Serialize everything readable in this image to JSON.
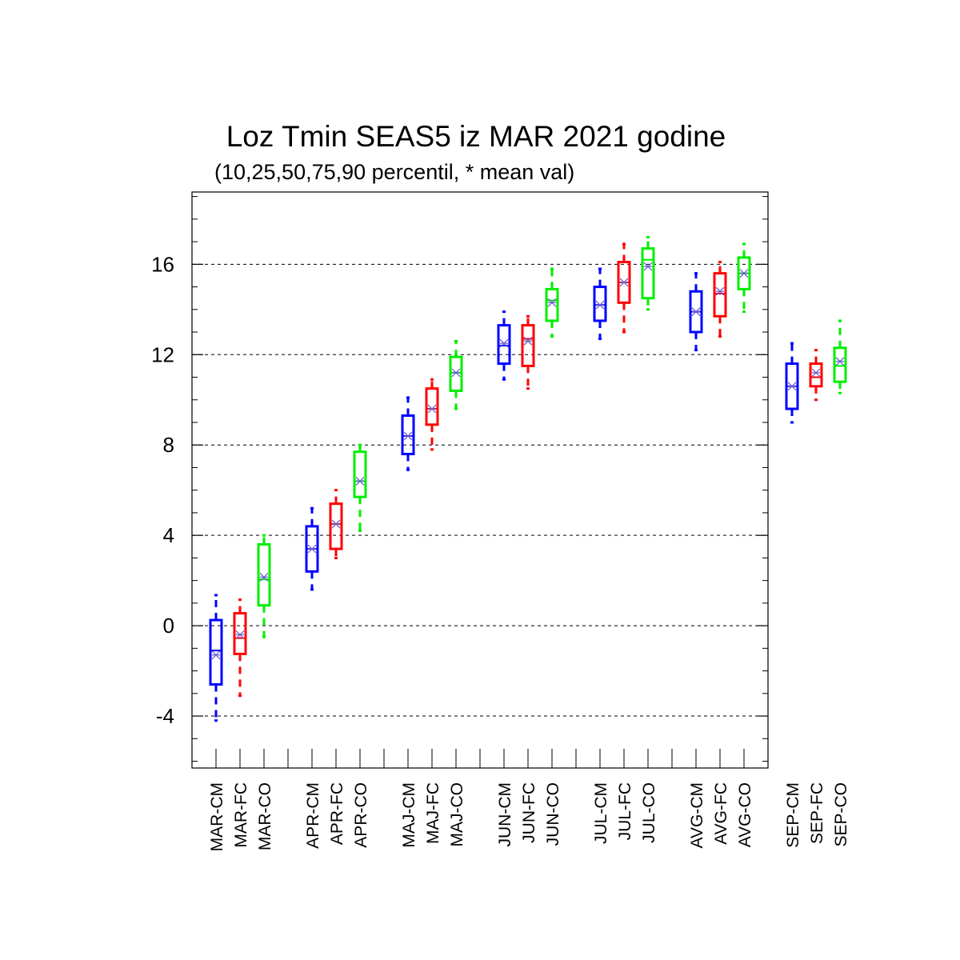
{
  "chart_data": {
    "type": "box",
    "title": "Loz Tmin SEAS5 iz MAR 2021 godine",
    "subtitle": "(10,25,50,75,90 percentil, * mean val)",
    "xlabel": "",
    "ylabel": "",
    "ylim": [
      -6.3,
      19.2
    ],
    "yticks": [
      -4,
      0,
      4,
      8,
      12,
      16
    ],
    "grid": true,
    "colors": {
      "CM": "#0000ff",
      "FC": "#ff0000",
      "CO": "#00ee00",
      "mean": "#6a5acd",
      "grid": "#000000"
    },
    "categories": [
      "MAR-CM",
      "MAR-FC",
      "MAR-CO",
      "APR-CM",
      "APR-FC",
      "APR-CO",
      "MAJ-CM",
      "MAJ-FC",
      "MAJ-CO",
      "JUN-CM",
      "JUN-FC",
      "JUN-CO",
      "JUL-CM",
      "JUL-FC",
      "JUL-CO",
      "AVG-CM",
      "AVG-FC",
      "AVG-CO",
      "SEP-CM",
      "SEP-FC",
      "SEP-CO"
    ],
    "boxes": [
      {
        "p10": -4.2,
        "p25": -2.6,
        "p50": -1.1,
        "p75": 0.25,
        "p90": 1.35,
        "mean": -1.3
      },
      {
        "p10": -3.1,
        "p25": -1.25,
        "p50": -0.55,
        "p75": 0.55,
        "p90": 1.15,
        "mean": -0.4
      },
      {
        "p10": -0.5,
        "p25": 0.9,
        "p50": 2.05,
        "p75": 3.6,
        "p90": 4.0,
        "mean": 2.15
      },
      {
        "p10": 1.6,
        "p25": 2.4,
        "p50": 3.4,
        "p75": 4.4,
        "p90": 5.2,
        "mean": 3.4
      },
      {
        "p10": 3.0,
        "p25": 3.4,
        "p50": 4.5,
        "p75": 5.4,
        "p90": 6.0,
        "mean": 4.5
      },
      {
        "p10": 4.2,
        "p25": 5.7,
        "p50": 6.4,
        "p75": 7.7,
        "p90": 8.0,
        "mean": 6.4
      },
      {
        "p10": 6.9,
        "p25": 7.6,
        "p50": 8.4,
        "p75": 9.3,
        "p90": 10.1,
        "mean": 8.4
      },
      {
        "p10": 7.8,
        "p25": 8.9,
        "p50": 9.6,
        "p75": 10.5,
        "p90": 10.9,
        "mean": 9.6
      },
      {
        "p10": 9.6,
        "p25": 10.4,
        "p50": 11.2,
        "p75": 11.9,
        "p90": 12.6,
        "mean": 11.2
      },
      {
        "p10": 10.9,
        "p25": 11.6,
        "p50": 12.4,
        "p75": 13.3,
        "p90": 13.9,
        "mean": 12.5
      },
      {
        "p10": 10.5,
        "p25": 11.5,
        "p50": 12.7,
        "p75": 13.3,
        "p90": 13.7,
        "mean": 12.6
      },
      {
        "p10": 12.8,
        "p25": 13.5,
        "p50": 14.4,
        "p75": 14.9,
        "p90": 15.8,
        "mean": 14.3
      },
      {
        "p10": 12.7,
        "p25": 13.5,
        "p50": 14.2,
        "p75": 15.0,
        "p90": 15.8,
        "mean": 14.2
      },
      {
        "p10": 13.0,
        "p25": 14.3,
        "p50": 15.2,
        "p75": 16.1,
        "p90": 16.9,
        "mean": 15.2
      },
      {
        "p10": 14.0,
        "p25": 14.5,
        "p50": 16.2,
        "p75": 16.7,
        "p90": 17.2,
        "mean": 15.9
      },
      {
        "p10": 12.2,
        "p25": 13.0,
        "p50": 13.9,
        "p75": 14.8,
        "p90": 15.6,
        "mean": 13.9
      },
      {
        "p10": 12.8,
        "p25": 13.7,
        "p50": 14.7,
        "p75": 15.6,
        "p90": 16.1,
        "mean": 14.8
      },
      {
        "p10": 13.9,
        "p25": 14.9,
        "p50": 15.6,
        "p75": 16.3,
        "p90": 16.9,
        "mean": 15.6
      },
      {
        "p10": 9.0,
        "p25": 9.6,
        "p50": 10.6,
        "p75": 11.6,
        "p90": 12.5,
        "mean": 10.6
      },
      {
        "p10": 10.0,
        "p25": 10.6,
        "p50": 11.0,
        "p75": 11.6,
        "p90": 12.2,
        "mean": 11.2
      },
      {
        "p10": 10.3,
        "p25": 10.8,
        "p50": 11.5,
        "p75": 12.3,
        "p90": 13.5,
        "mean": 11.7
      }
    ]
  }
}
